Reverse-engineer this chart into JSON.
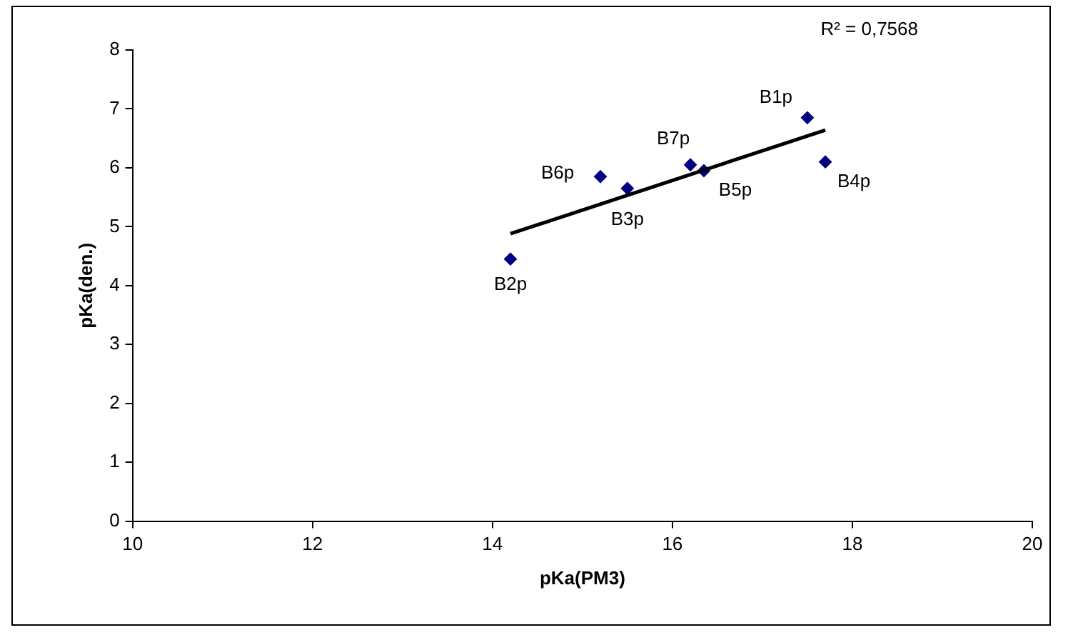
{
  "chart_data": {
    "type": "scatter",
    "xlabel": "pKa(PM3)",
    "ylabel": "pKa(den.)",
    "xlim": [
      10,
      20
    ],
    "xticks": [
      10,
      12,
      14,
      16,
      18,
      20
    ],
    "ylim": [
      0,
      8
    ],
    "yticks": [
      0,
      1,
      2,
      3,
      4,
      5,
      6,
      7,
      8
    ],
    "grid": false,
    "legend": false,
    "marker": "diamond",
    "annotations": [
      "R² = 0,7568"
    ],
    "series": [
      {
        "name": "B1p",
        "color": "#000080",
        "x": [
          17.5
        ],
        "values": [
          6.85
        ]
      },
      {
        "name": "B2p",
        "color": "#000080",
        "x": [
          14.2
        ],
        "values": [
          4.45
        ]
      },
      {
        "name": "B3p",
        "color": "#000080",
        "x": [
          15.5
        ],
        "values": [
          5.65
        ]
      },
      {
        "name": "B4p",
        "color": "#000080",
        "x": [
          17.7
        ],
        "values": [
          6.1
        ]
      },
      {
        "name": "B5p",
        "color": "#000080",
        "x": [
          16.35
        ],
        "values": [
          5.95
        ]
      },
      {
        "name": "B6p",
        "color": "#000080",
        "x": [
          15.2
        ],
        "values": [
          5.85
        ]
      },
      {
        "name": "B7p",
        "color": "#000080",
        "x": [
          16.2
        ],
        "values": [
          6.05
        ]
      },
      {
        "type": "line",
        "color": "#000000",
        "x": [
          14.2,
          17.7
        ],
        "values": [
          4.88,
          6.64
        ],
        "marker": "none",
        "line_style": "solid"
      }
    ]
  }
}
